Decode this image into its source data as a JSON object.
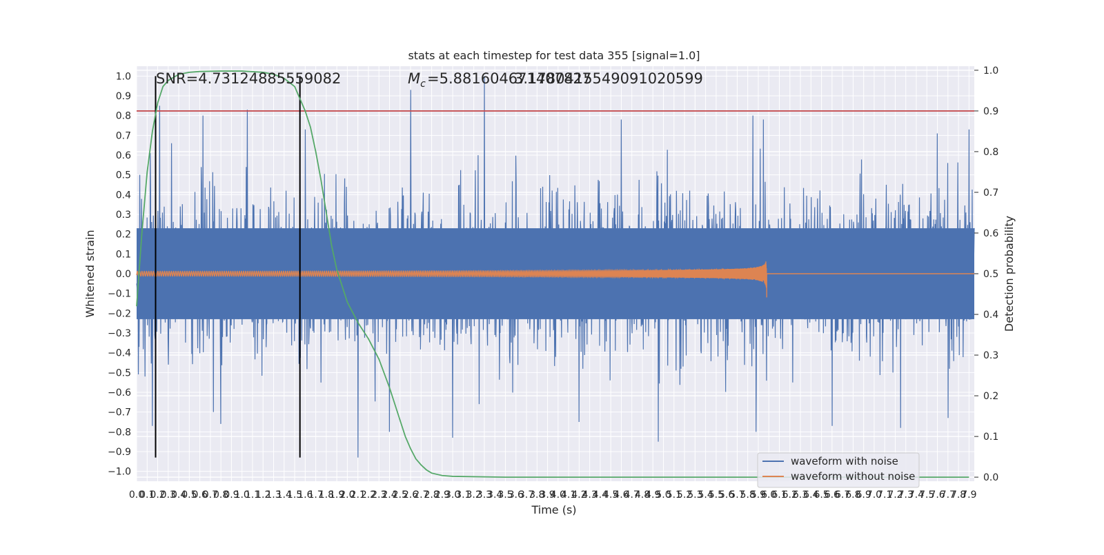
{
  "chart_data": {
    "type": "line",
    "title": "stats at each timestep for test data 355 [signal=1.0]",
    "xlabel": "Time (s)",
    "ylabel": "Whitened strain",
    "y2label": "Detection probability",
    "xlim": [
      0,
      7.95
    ],
    "ylim": [
      -1.05,
      1.05
    ],
    "y2lim": [
      -0.01,
      1.01
    ],
    "x_ticks": [
      0.0,
      0.1,
      0.2,
      0.3,
      0.4,
      0.5,
      0.6,
      0.7,
      0.8,
      0.9,
      1.0,
      1.1,
      1.2,
      1.3,
      1.4,
      1.5,
      1.6,
      1.7,
      1.8,
      1.9,
      2.0,
      2.1,
      2.2,
      2.3,
      2.4,
      2.5,
      2.6,
      2.7,
      2.8,
      2.9,
      3.0,
      3.1,
      3.2,
      3.3,
      3.4,
      3.5,
      3.6,
      3.7,
      3.8,
      3.9,
      4.0,
      4.1,
      4.2,
      4.3,
      4.4,
      4.5,
      4.6,
      4.7,
      4.8,
      4.9,
      5.0,
      5.1,
      5.2,
      5.3,
      5.4,
      5.5,
      5.6,
      5.7,
      5.8,
      5.9,
      6.0,
      6.1,
      6.2,
      6.3,
      6.4,
      6.5,
      6.6,
      6.7,
      6.8,
      6.9,
      7.0,
      7.1,
      7.2,
      7.3,
      7.4,
      7.5,
      7.6,
      7.7,
      7.8,
      7.9
    ],
    "y_ticks": [
      -1.0,
      -0.9,
      -0.8,
      -0.7,
      -0.6,
      -0.5,
      -0.4,
      -0.3,
      -0.2,
      -0.1,
      0.0,
      0.1,
      0.2,
      0.3,
      0.4,
      0.5,
      0.6,
      0.7,
      0.8,
      0.9,
      1.0
    ],
    "y2_ticks": [
      0.0,
      0.1,
      0.2,
      0.3,
      0.4,
      0.5,
      0.6,
      0.7,
      0.8,
      0.9,
      1.0
    ],
    "grid": true,
    "legend_position": "lower-right",
    "annotations": {
      "snr": "SNR=4.73124885559082",
      "mc_prefix": "=5.881604671407827",
      "mc_overlap": "3.1780415549091020599"
    },
    "series": [
      {
        "name": "waveform with noise",
        "color": "#4c72b0",
        "kind": "noise",
        "amplitude_envelope": 0.3,
        "peaks": [
          {
            "x": 0.03,
            "y": 0.5
          },
          {
            "x": 0.08,
            "y": -0.52
          },
          {
            "x": 0.13,
            "y": 0.61
          },
          {
            "x": 0.15,
            "y": -0.77
          },
          {
            "x": 0.22,
            "y": 0.85
          },
          {
            "x": 0.3,
            "y": -0.46
          },
          {
            "x": 0.33,
            "y": 0.66
          },
          {
            "x": 0.63,
            "y": 0.8
          },
          {
            "x": 0.73,
            "y": -0.7
          },
          {
            "x": 0.8,
            "y": -0.76
          },
          {
            "x": 1.05,
            "y": 0.83
          },
          {
            "x": 1.55,
            "y": 0.7
          },
          {
            "x": 1.6,
            "y": 0.73
          },
          {
            "x": 2.1,
            "y": -0.93
          },
          {
            "x": 2.4,
            "y": -0.8
          },
          {
            "x": 2.6,
            "y": 0.93
          },
          {
            "x": 3.0,
            "y": 0.95
          },
          {
            "x": 3.0,
            "y": -0.83
          },
          {
            "x": 3.3,
            "y": 1.0
          },
          {
            "x": 4.2,
            "y": -0.75
          },
          {
            "x": 4.6,
            "y": 0.78
          },
          {
            "x": 4.95,
            "y": -0.85
          },
          {
            "x": 5.85,
            "y": 0.8
          },
          {
            "x": 5.88,
            "y": -0.8
          },
          {
            "x": 5.95,
            "y": 0.78
          },
          {
            "x": 6.6,
            "y": -0.77
          },
          {
            "x": 7.25,
            "y": -0.78
          },
          {
            "x": 7.6,
            "y": 0.71
          },
          {
            "x": 7.7,
            "y": -0.73
          },
          {
            "x": 7.9,
            "y": 0.73
          }
        ]
      },
      {
        "name": "waveform without noise",
        "color": "#dd8452",
        "kind": "chirp",
        "t_merger": 5.98,
        "start_amplitude": 0.012,
        "peak_amplitude": 0.1
      },
      {
        "name": "",
        "color": "#55a868",
        "axis": "right",
        "kind": "detection_probability",
        "points": [
          [
            0.0,
            0.42
          ],
          [
            0.05,
            0.6
          ],
          [
            0.1,
            0.75
          ],
          [
            0.15,
            0.85
          ],
          [
            0.2,
            0.92
          ],
          [
            0.25,
            0.96
          ],
          [
            0.3,
            0.975
          ],
          [
            0.4,
            0.99
          ],
          [
            0.5,
            0.995
          ],
          [
            0.6,
            0.997
          ],
          [
            0.8,
            0.998
          ],
          [
            1.0,
            0.998
          ],
          [
            1.2,
            0.995
          ],
          [
            1.3,
            0.99
          ],
          [
            1.4,
            0.98
          ],
          [
            1.5,
            0.96
          ],
          [
            1.55,
            0.93
          ],
          [
            1.6,
            0.9
          ],
          [
            1.65,
            0.86
          ],
          [
            1.7,
            0.8
          ],
          [
            1.75,
            0.73
          ],
          [
            1.8,
            0.65
          ],
          [
            1.85,
            0.57
          ],
          [
            1.9,
            0.51
          ],
          [
            1.95,
            0.47
          ],
          [
            2.0,
            0.43
          ],
          [
            2.1,
            0.38
          ],
          [
            2.2,
            0.34
          ],
          [
            2.3,
            0.29
          ],
          [
            2.4,
            0.22
          ],
          [
            2.45,
            0.18
          ],
          [
            2.5,
            0.14
          ],
          [
            2.55,
            0.1
          ],
          [
            2.6,
            0.07
          ],
          [
            2.65,
            0.045
          ],
          [
            2.7,
            0.03
          ],
          [
            2.75,
            0.018
          ],
          [
            2.8,
            0.01
          ],
          [
            2.9,
            0.004
          ],
          [
            3.0,
            0.002
          ],
          [
            3.5,
            0.0
          ],
          [
            7.9,
            0.0
          ]
        ]
      }
    ],
    "threshold_line": {
      "y2": 0.9,
      "color": "#c44e52"
    },
    "vertical_lines": [
      0.18,
      1.55
    ]
  }
}
